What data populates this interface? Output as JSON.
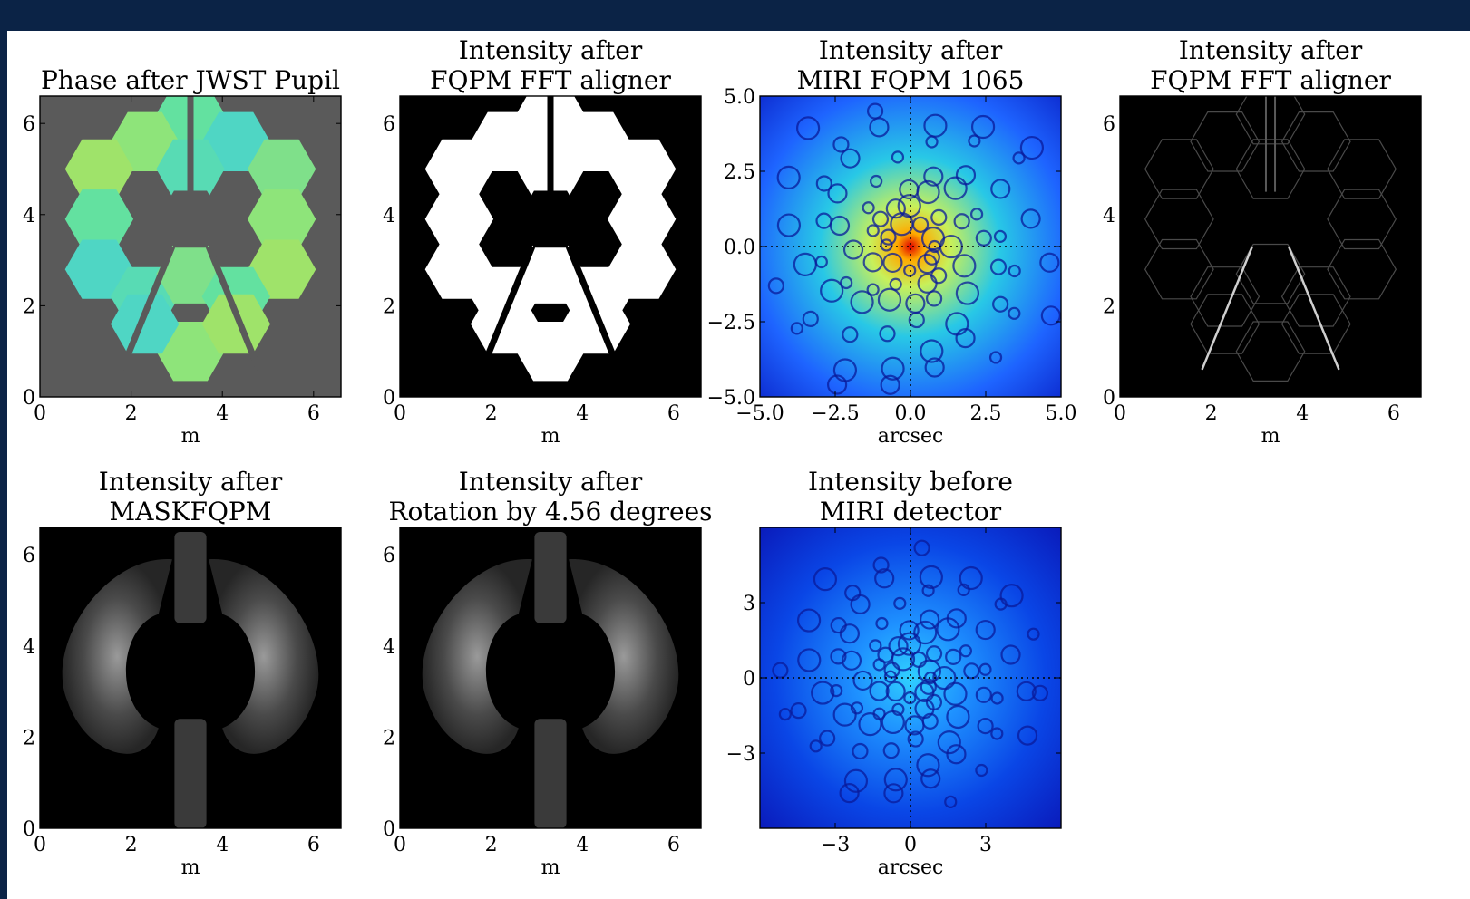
{
  "chart_data": [
    {
      "type": "heatmap",
      "title": [
        "Phase after JWST Pupil"
      ],
      "xlabel": "m",
      "ylabel": "",
      "xticks": [
        0,
        2,
        4,
        6
      ],
      "yticks": [
        0,
        2,
        4,
        6
      ],
      "xlim": [
        0,
        6.6
      ],
      "ylim": [
        0,
        6.6
      ],
      "image": "phase",
      "colors": {
        "background": "#5a5a5a",
        "map": "jet"
      }
    },
    {
      "type": "heatmap",
      "title": [
        "Intensity after",
        "FQPM FFT aligner"
      ],
      "xlabel": "m",
      "ylabel": "",
      "xticks": [
        0,
        2,
        4,
        6
      ],
      "yticks": [
        0,
        2,
        4,
        6
      ],
      "xlim": [
        0,
        6.6
      ],
      "ylim": [
        0,
        6.6
      ],
      "image": "pupil-mask",
      "colors": {
        "background": "#000000",
        "map": "gray"
      }
    },
    {
      "type": "heatmap",
      "title": [
        "Intensity after",
        "MIRI FQPM 1065"
      ],
      "xlabel": "arcsec",
      "ylabel": "",
      "xticks": [
        "−5.0",
        "−2.5",
        "0.0",
        "2.5",
        "5.0"
      ],
      "yticks": [
        "−5.0",
        "−2.5",
        "0.0",
        "2.5",
        "5.0"
      ],
      "xlim": [
        -5,
        5
      ],
      "ylim": [
        -5,
        5
      ],
      "image": "psf-bright",
      "colors": {
        "background": "#0a22c8",
        "map": "jet"
      }
    },
    {
      "type": "heatmap",
      "title": [
        "Intensity after",
        "FQPM FFT aligner"
      ],
      "xlabel": "m",
      "ylabel": "",
      "xticks": [
        0,
        2,
        4,
        6
      ],
      "yticks": [
        0,
        2,
        4,
        6
      ],
      "xlim": [
        0,
        6.6
      ],
      "ylim": [
        0,
        6.6
      ],
      "image": "edges",
      "colors": {
        "background": "#000000",
        "map": "gray"
      }
    },
    {
      "type": "heatmap",
      "title": [
        "Intensity after",
        "MASKFQPM"
      ],
      "xlabel": "m",
      "ylabel": "",
      "xticks": [
        0,
        2,
        4,
        6
      ],
      "yticks": [
        0,
        2,
        4,
        6
      ],
      "xlim": [
        0,
        6.6
      ],
      "ylim": [
        0,
        6.6
      ],
      "image": "lyot",
      "colors": {
        "background": "#000000",
        "map": "gray"
      }
    },
    {
      "type": "heatmap",
      "title": [
        "Intensity after",
        "Rotation by 4.56 degrees"
      ],
      "xlabel": "m",
      "ylabel": "",
      "xticks": [
        0,
        2,
        4,
        6
      ],
      "yticks": [
        0,
        2,
        4,
        6
      ],
      "xlim": [
        0,
        6.6
      ],
      "ylim": [
        0,
        6.6
      ],
      "image": "lyot",
      "colors": {
        "background": "#000000",
        "map": "gray"
      }
    },
    {
      "type": "heatmap",
      "title": [
        "Intensity before",
        "MIRI detector"
      ],
      "xlabel": "arcsec",
      "ylabel": "",
      "xticks": [
        "−3",
        "0",
        "3"
      ],
      "yticks": [
        "−3",
        "0",
        "3"
      ],
      "xlim": [
        -6,
        6
      ],
      "ylim": [
        -6,
        6
      ],
      "image": "psf-dim",
      "colors": {
        "background": "#0a14b4",
        "map": "jet"
      }
    }
  ]
}
